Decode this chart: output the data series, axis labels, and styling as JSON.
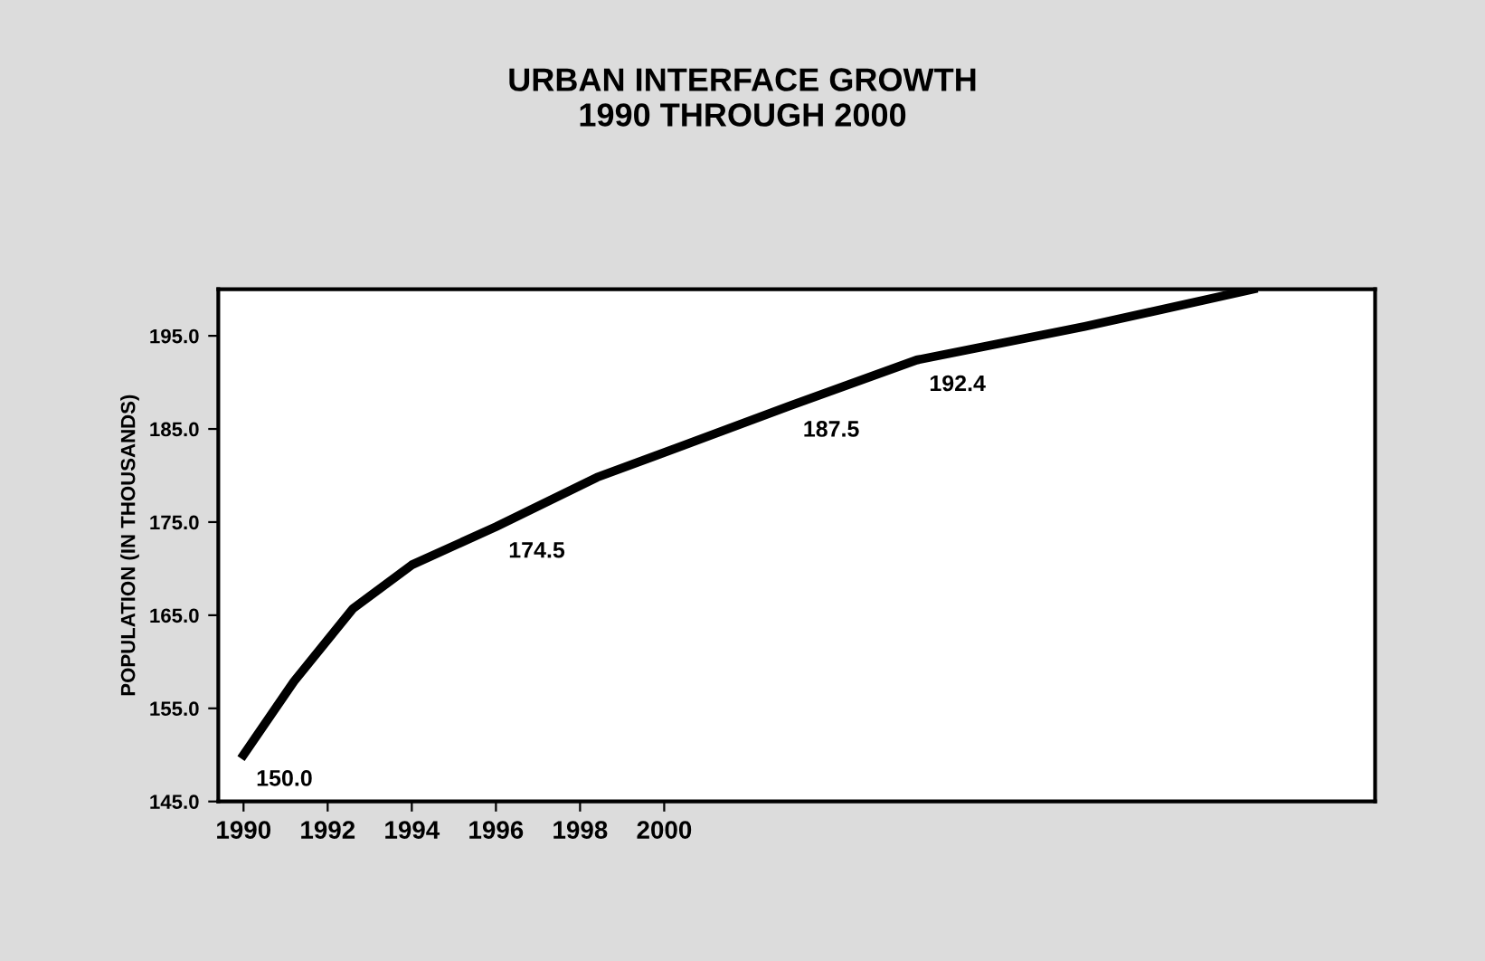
{
  "chart_data": {
    "type": "line",
    "title": "URBAN INTERFACE GROWTH\n1990 THROUGH 2000",
    "ylabel": "POPULATION (IN THOUSANDS)",
    "x": [
      1990,
      1991.2,
      1992.6,
      1994.0,
      1996.0,
      1998.4,
      2000.5,
      2003.0,
      2006.0,
      2010.0,
      2014.0
    ],
    "series": [
      {
        "color": "#000000",
        "values": [
          150.0,
          157.9,
          165.7,
          170.4,
          174.5,
          179.8,
          183.3,
          187.5,
          192.4,
          196.0,
          200.0
        ],
        "value_labels": [
          "150.0",
          null,
          null,
          null,
          "174.5",
          null,
          null,
          "187.5",
          "192.4",
          null,
          null
        ]
      }
    ],
    "xlim": [
      1989.4,
      2016.9
    ],
    "xticks": [
      1990,
      1992,
      1994,
      1996,
      1998,
      2000
    ],
    "ylim": [
      145,
      200
    ],
    "yticks": [
      {
        "value": 145,
        "label": "145.0"
      },
      {
        "value": 155,
        "label": "155.0"
      },
      {
        "value": 165,
        "label": "165.0"
      },
      {
        "value": 175,
        "label": "175.0"
      },
      {
        "value": 185,
        "label": "185.0"
      },
      {
        "value": 195,
        "label": "195.0"
      }
    ],
    "grid": false,
    "legend": false,
    "marker": "none",
    "line_style": "solid"
  }
}
